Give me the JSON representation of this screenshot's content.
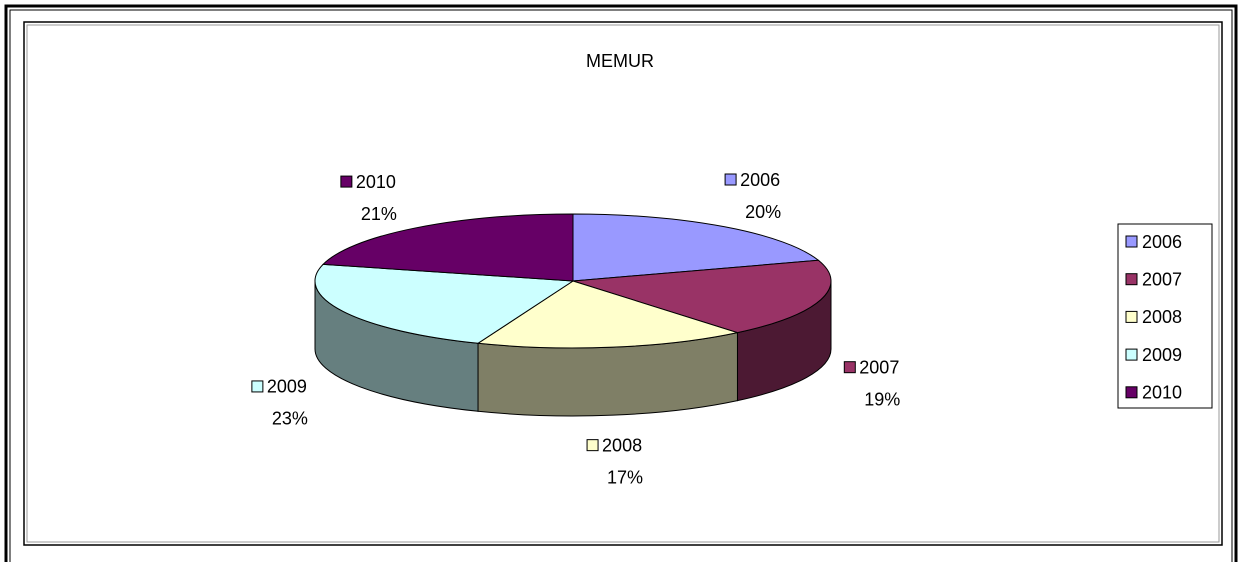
{
  "chart_data": {
    "type": "pie",
    "title": "MEMUR",
    "categories": [
      "2006",
      "2007",
      "2008",
      "2009",
      "2010"
    ],
    "values": [
      20,
      19,
      17,
      23,
      21
    ],
    "value_labels": [
      "20%",
      "19%",
      "17%",
      "23%",
      "21%"
    ],
    "colors": [
      "#9999ff",
      "#993366",
      "#ffffcc",
      "#ccffff",
      "#660066"
    ],
    "legend": "right"
  }
}
